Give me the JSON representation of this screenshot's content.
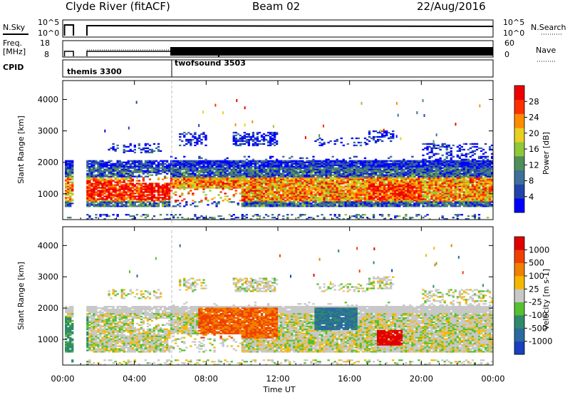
{
  "header": {
    "station": "Clyde River (fitACF)",
    "beam": "Beam 02",
    "date": "22/Aug/2016"
  },
  "top_panels": {
    "nsky_label": "N.Sky",
    "nsearch_label": "N.Search",
    "noise_ticks": [
      "10^5",
      "10^0"
    ],
    "freq_label_1": "Freq.",
    "freq_label_2": "[MHz]",
    "freq_ticks": [
      "18",
      "8"
    ],
    "nave_label": "Nave",
    "nave_ticks": [
      "60",
      "0"
    ],
    "cpid_label": "CPID",
    "cpid_segments": [
      {
        "name": "themis 3300",
        "start_hour": 0
      },
      {
        "name": "twofsound 3503",
        "start_hour": 6
      }
    ]
  },
  "chart_data": [
    {
      "type": "heatmap",
      "parameter": "power",
      "ylabel": "Slant Range [km]",
      "ylim": [
        180,
        4600
      ],
      "yticks": [
        1000,
        2000,
        3000,
        4000
      ],
      "xlim": [
        0,
        24
      ],
      "colorbar": {
        "label": "Power [dB]",
        "range": [
          0,
          32
        ],
        "ticks": [
          "4",
          "8",
          "12",
          "16",
          "20",
          "24",
          "28"
        ],
        "colors": [
          "#0000ff",
          "#2244aa",
          "#3f6f9a",
          "#4f8f5a",
          "#8fc83a",
          "#e6d020",
          "#ff8c00",
          "#ff3000",
          "#ee0000"
        ]
      }
    },
    {
      "type": "heatmap",
      "parameter": "velocity",
      "ylabel": "Slant Range [km]",
      "ylim": [
        180,
        4600
      ],
      "yticks": [
        1000,
        2000,
        3000,
        4000
      ],
      "xlim": [
        0,
        24
      ],
      "colorbar": {
        "label": "Velocity [m s-1]",
        "ticks": [
          "1000",
          "500",
          "100",
          "25",
          "-25",
          "-100",
          "-500",
          "-1000"
        ],
        "colors": [
          "#1a3fbf",
          "#2a6aa0",
          "#2f8a6a",
          "#55c030",
          "#c8c8c8",
          "#f5b800",
          "#f08000",
          "#f04000",
          "#e00000"
        ]
      }
    }
  ],
  "xaxis": {
    "ticks": [
      "00:00",
      "04:00",
      "08:00",
      "12:00",
      "16:00",
      "20:00",
      "00:00"
    ],
    "label": "Time UT"
  }
}
